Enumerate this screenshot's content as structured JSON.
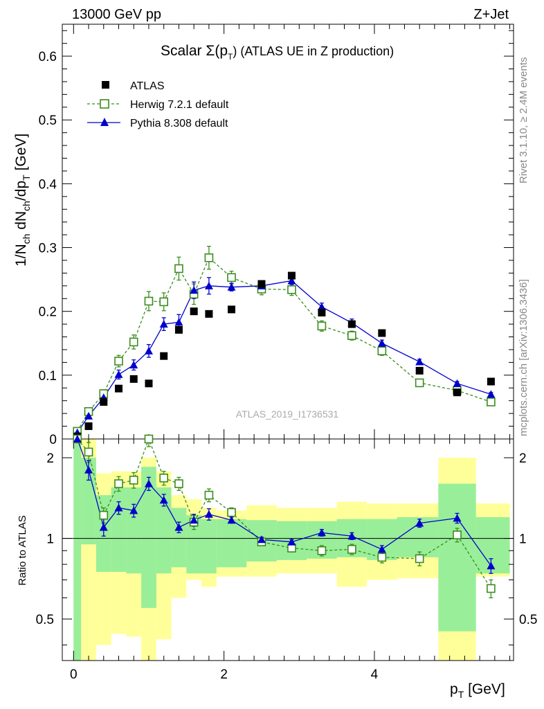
{
  "header": {
    "energy_label": "13000 GeV pp",
    "process_label": "Z+Jet"
  },
  "side_labels": {
    "rivet": "Rivet 3.1.10, ≥ 2.4M events",
    "mcplots": "mcplots.cern.ch [arXiv:1306.3436]"
  },
  "chart_data": {
    "type": "scatter",
    "title_main": "Scalar Σ(p",
    "title_sub": "T",
    "title_tail": ") (ATLAS UE in Z production)",
    "analysis_id": "ATLAS_2019_I1736531",
    "xlabel": "p",
    "xlabel_sub": "T",
    "xlabel_unit": " [GeV]",
    "ylabel_parts": [
      "1/N",
      "ch",
      " dN",
      "ch",
      "/dp",
      "T",
      " [GeV]"
    ],
    "ratio_ylabel": "Ratio to ATLAS",
    "xlim": [
      -0.15,
      5.85
    ],
    "ylim": [
      0,
      0.65
    ],
    "ratio_ylim": [
      0.35,
      2.35
    ],
    "x_ticks": [
      0,
      2,
      4
    ],
    "y_ticks": [
      "0",
      "0.1",
      "0.2",
      "0.3",
      "0.4",
      "0.5",
      "0.6"
    ],
    "ratio_ticks": [
      "0.5",
      "1",
      "2"
    ],
    "ratio_ref": 1,
    "bin_edges": [
      0.0,
      0.1,
      0.3,
      0.5,
      0.7,
      0.9,
      1.1,
      1.3,
      1.5,
      1.7,
      1.9,
      2.3,
      2.7,
      3.1,
      3.5,
      3.9,
      4.3,
      4.85,
      5.35,
      5.8
    ],
    "x": [
      0.05,
      0.2,
      0.4,
      0.6,
      0.8,
      1.0,
      1.2,
      1.4,
      1.6,
      1.8,
      2.1,
      2.5,
      2.9,
      3.3,
      3.7,
      4.1,
      4.6,
      5.1,
      5.55
    ],
    "band_green": [
      [
        0.35,
        2.35
      ],
      [
        0.95,
        2.0
      ],
      [
        0.75,
        1.45
      ],
      [
        0.75,
        1.55
      ],
      [
        0.74,
        1.55
      ],
      [
        0.55,
        1.85
      ],
      [
        0.74,
        1.55
      ],
      [
        0.78,
        1.3
      ],
      [
        0.74,
        1.22
      ],
      [
        0.74,
        1.18
      ],
      [
        0.78,
        1.18
      ],
      [
        0.82,
        1.17
      ],
      [
        0.83,
        1.16
      ],
      [
        0.84,
        1.16
      ],
      [
        0.85,
        1.18
      ],
      [
        0.83,
        1.18
      ],
      [
        0.85,
        1.2
      ],
      [
        0.45,
        1.6
      ],
      [
        0.74,
        1.2
      ]
    ],
    "band_yellow": [
      [
        0.35,
        2.35
      ],
      [
        0.35,
        2.35
      ],
      [
        0.4,
        1.75
      ],
      [
        0.44,
        1.78
      ],
      [
        0.43,
        1.78
      ],
      [
        0.35,
        2.0
      ],
      [
        0.42,
        1.78
      ],
      [
        0.6,
        1.45
      ],
      [
        0.7,
        1.4
      ],
      [
        0.66,
        1.3
      ],
      [
        0.72,
        1.27
      ],
      [
        0.72,
        1.33
      ],
      [
        0.74,
        1.3
      ],
      [
        0.74,
        1.3
      ],
      [
        0.66,
        1.37
      ],
      [
        0.7,
        1.35
      ],
      [
        0.71,
        1.35
      ],
      [
        0.35,
        2.0
      ],
      [
        0.72,
        1.35
      ]
    ],
    "series": [
      {
        "name": "ATLAS",
        "color": "#000000",
        "style": "square",
        "values": [
          0.004,
          0.02,
          0.058,
          0.079,
          0.094,
          0.087,
          0.13,
          0.171,
          0.2,
          0.196,
          0.203,
          0.243,
          0.256,
          0.198,
          0.18,
          0.166,
          0.107,
          0.073,
          0.09
        ]
      },
      {
        "name": "Herwig 7.2.1 default",
        "color": "#3a8c1c",
        "style": "open-square-dashed",
        "values": [
          0.012,
          0.043,
          0.071,
          0.122,
          0.152,
          0.216,
          0.215,
          0.267,
          0.227,
          0.284,
          0.253,
          0.235,
          0.234,
          0.177,
          0.162,
          0.138,
          0.088,
          0.076,
          0.058
        ],
        "errors": [
          0.003,
          0.004,
          0.006,
          0.009,
          0.011,
          0.015,
          0.014,
          0.018,
          0.016,
          0.018,
          0.01,
          0.009,
          0.009,
          0.008,
          0.007,
          0.007,
          0.005,
          0.004,
          0.004
        ],
        "ratio": [
          2.35,
          2.1,
          1.22,
          1.6,
          1.65,
          2.35,
          1.68,
          1.6,
          1.15,
          1.45,
          1.25,
          0.97,
          0.92,
          0.9,
          0.91,
          0.85,
          0.84,
          1.03,
          0.65
        ],
        "ratio_errors": [
          0,
          0.18,
          0.08,
          0.1,
          0.11,
          0.15,
          0.1,
          0.09,
          0.07,
          0.08,
          0.05,
          0.03,
          0.03,
          0.04,
          0.04,
          0.04,
          0.05,
          0.06,
          0.05
        ]
      },
      {
        "name": "Pythia 8.308 default",
        "color": "#0000cc",
        "style": "filled-triangle-solid",
        "values": [
          0.01,
          0.036,
          0.065,
          0.101,
          0.116,
          0.138,
          0.18,
          0.183,
          0.233,
          0.24,
          0.238,
          0.24,
          0.248,
          0.207,
          0.182,
          0.15,
          0.121,
          0.087,
          0.07
        ],
        "errors": [
          0.002,
          0.003,
          0.005,
          0.007,
          0.008,
          0.01,
          0.01,
          0.012,
          0.013,
          0.013,
          0.006,
          0.006,
          0.006,
          0.006,
          0.006,
          0.005,
          0.004,
          0.003,
          0.003
        ],
        "ratio": [
          2.35,
          1.8,
          1.1,
          1.3,
          1.27,
          1.6,
          1.39,
          1.1,
          1.17,
          1.23,
          1.17,
          0.99,
          0.97,
          1.05,
          1.02,
          0.91,
          1.14,
          1.19,
          0.79
        ],
        "ratio_errors": [
          0,
          0.15,
          0.08,
          0.07,
          0.07,
          0.09,
          0.07,
          0.05,
          0.06,
          0.06,
          0.03,
          0.02,
          0.02,
          0.03,
          0.03,
          0.03,
          0.04,
          0.05,
          0.05
        ]
      }
    ]
  }
}
